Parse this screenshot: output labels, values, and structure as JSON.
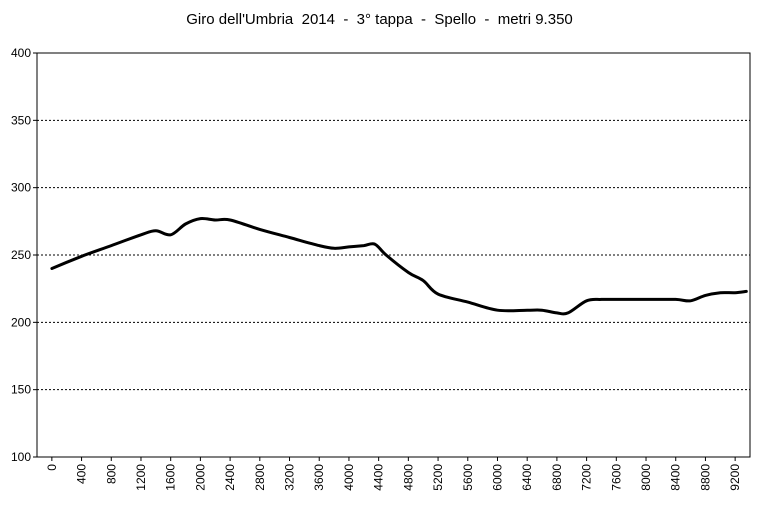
{
  "chart_data": {
    "type": "line",
    "title": "Giro dell'Umbria  2014  -  3° tappa  -  Spello  -  metri 9.350",
    "xlabel": "",
    "ylabel": "",
    "xlim": [
      -200,
      9400
    ],
    "ylim": [
      100,
      400
    ],
    "y_ticks": [
      100,
      150,
      200,
      250,
      300,
      350,
      400
    ],
    "x_ticks": [
      0,
      400,
      800,
      1200,
      1600,
      2000,
      2400,
      2800,
      3200,
      3600,
      4000,
      4400,
      4800,
      5200,
      5600,
      6000,
      6400,
      6800,
      7200,
      7600,
      8000,
      8400,
      8800,
      9200
    ],
    "grid": "horizontal dashed",
    "legend": "none",
    "line_color": "#000000",
    "series": [
      {
        "x": [
          0,
          400,
          800,
          1200,
          1400,
          1600,
          1800,
          2000,
          2200,
          2400,
          2800,
          3200,
          3600,
          3800,
          4000,
          4200,
          4350,
          4500,
          4800,
          5000,
          5200,
          5600,
          6000,
          6400,
          6600,
          6800,
          6950,
          7200,
          7400,
          7600,
          8000,
          8400,
          8600,
          8800,
          9000,
          9200,
          9350
        ],
        "y": [
          240,
          249,
          257,
          265,
          268,
          265,
          273,
          277,
          276,
          276,
          269,
          263,
          257,
          255,
          256,
          257,
          258,
          250,
          237,
          231,
          221,
          215,
          209,
          209,
          209,
          207,
          207,
          216,
          217,
          217,
          217,
          217,
          216,
          220,
          222,
          222,
          223
        ]
      }
    ]
  }
}
